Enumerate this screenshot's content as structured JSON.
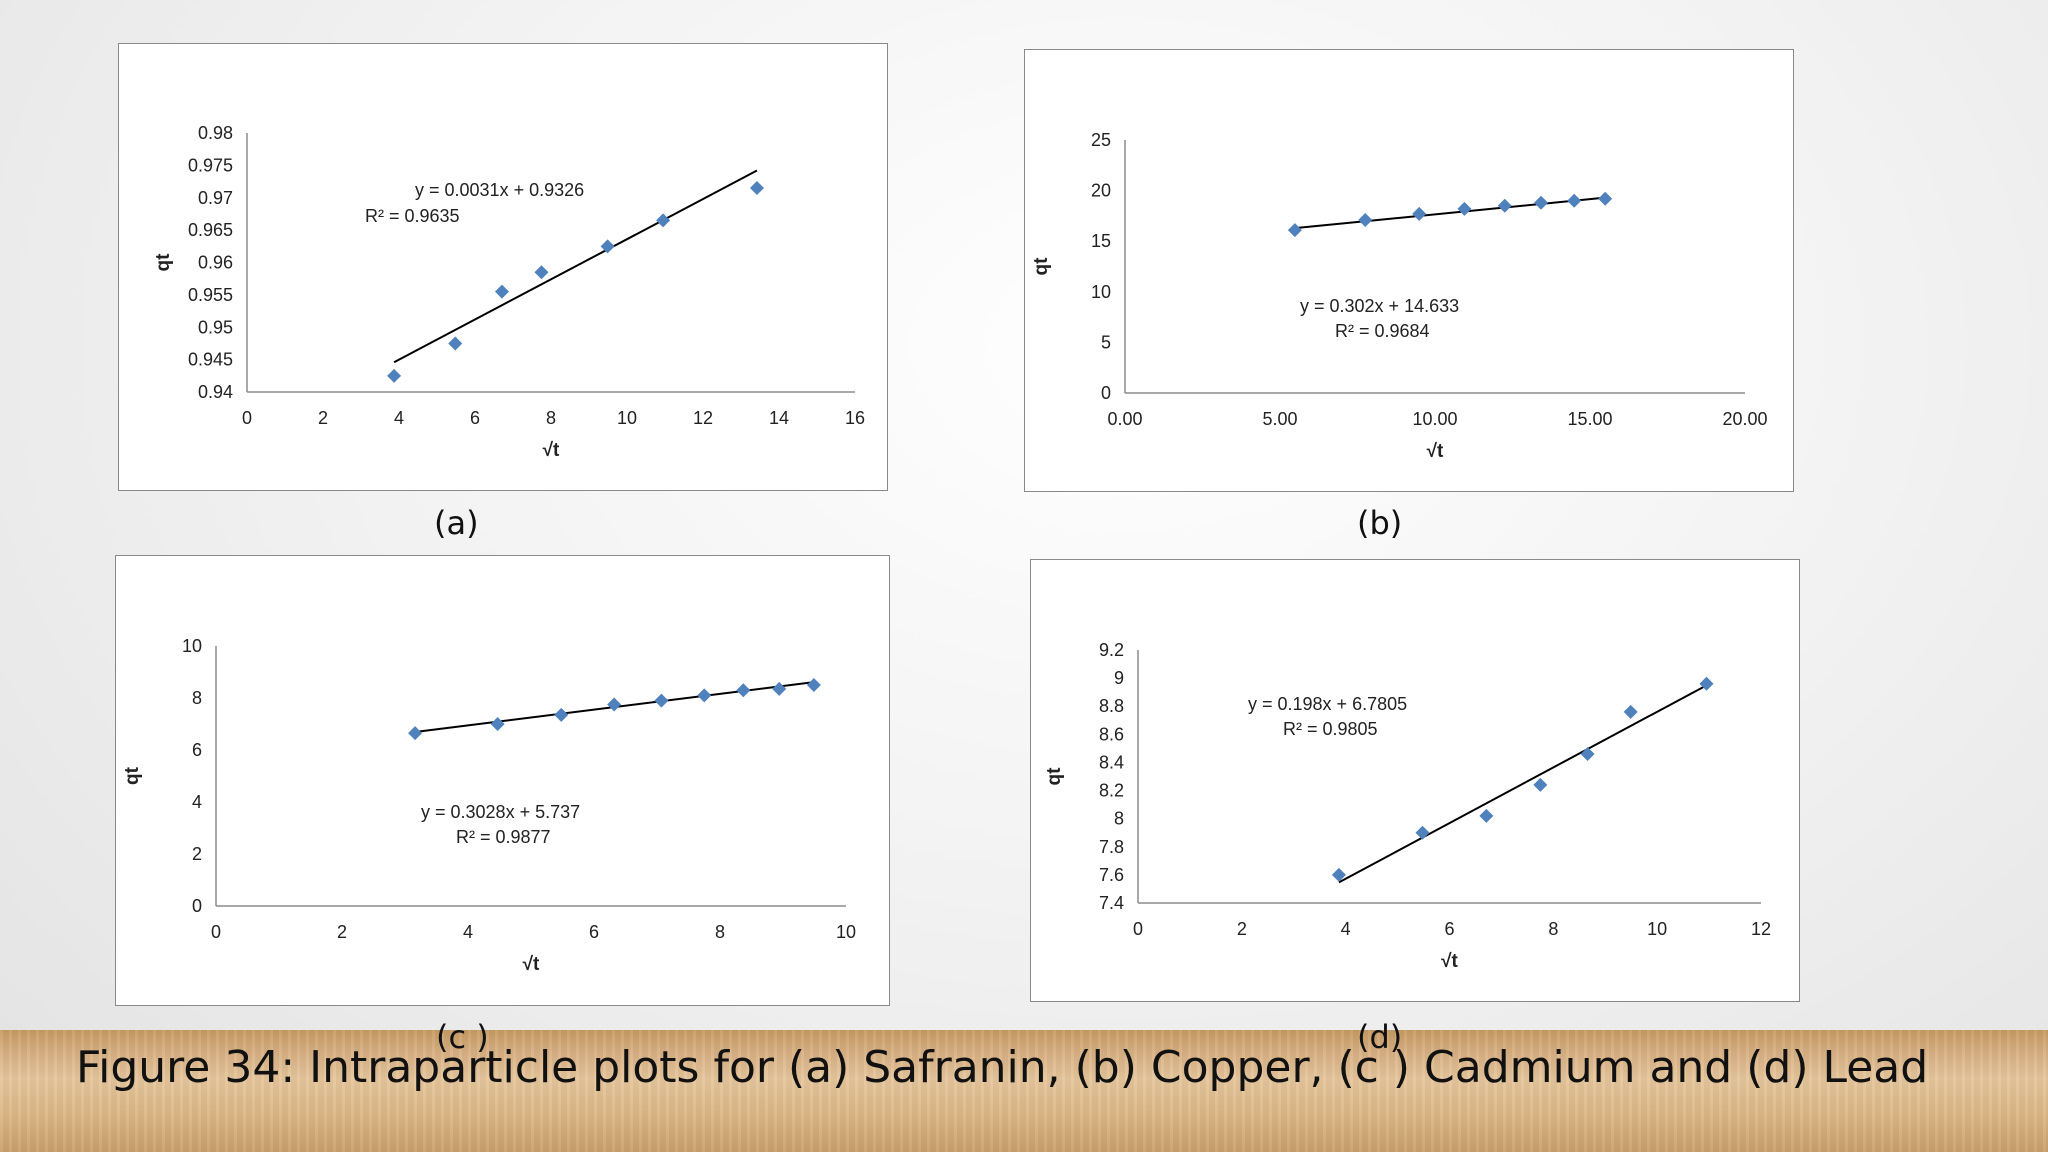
{
  "caption": "Figure 34: Intraparticle plots for (a) Safranin, (b) Copper, (c ) Cadmium and (d) Lead",
  "colors": {
    "marker": "#4f81bd",
    "trendline": "#000000",
    "axis": "#8c8c8c"
  },
  "chart_data": [
    {
      "id": "a",
      "label": "(a)",
      "type": "scatter",
      "xlabel": "√t",
      "ylabel": "qt",
      "xlim": [
        0,
        16
      ],
      "ylim": [
        0.94,
        0.98
      ],
      "xticks": [
        "0",
        "2",
        "4",
        "6",
        "8",
        "10",
        "12",
        "14",
        "16"
      ],
      "yticks": [
        "0.94",
        "0.945",
        "0.95",
        "0.955",
        "0.96",
        "0.965",
        "0.97",
        "0.975",
        "0.98"
      ],
      "points": [
        [
          3.87,
          0.9425
        ],
        [
          5.48,
          0.9475
        ],
        [
          6.71,
          0.9555
        ],
        [
          7.75,
          0.9585
        ],
        [
          9.49,
          0.9625
        ],
        [
          10.95,
          0.9665
        ],
        [
          13.42,
          0.9715
        ]
      ],
      "trendline": {
        "slope": 0.0031,
        "intercept": 0.9326,
        "x_range": [
          3.87,
          13.42
        ]
      },
      "equation": "y = 0.0031x + 0.9326",
      "r2": "R² = 0.9635"
    },
    {
      "id": "b",
      "label": "(b)",
      "type": "scatter",
      "xlabel": "√t",
      "ylabel": "qt",
      "xlim": [
        0,
        20
      ],
      "ylim": [
        0,
        25
      ],
      "xticks": [
        "0.00",
        "5.00",
        "10.00",
        "15.00",
        "20.00"
      ],
      "yticks": [
        "0",
        "5",
        "10",
        "15",
        "20",
        "25"
      ],
      "points": [
        [
          5.48,
          16.1
        ],
        [
          7.75,
          17.1
        ],
        [
          9.49,
          17.7
        ],
        [
          10.95,
          18.2
        ],
        [
          12.25,
          18.5
        ],
        [
          13.42,
          18.8
        ],
        [
          14.49,
          19.0
        ],
        [
          15.49,
          19.2
        ]
      ],
      "trendline": {
        "slope": 0.302,
        "intercept": 14.633,
        "x_range": [
          5.48,
          15.49
        ]
      },
      "equation": "y = 0.302x + 14.633",
      "r2": "R² = 0.9684"
    },
    {
      "id": "c",
      "label": "(c )",
      "type": "scatter",
      "xlabel": "√t",
      "ylabel": "qt",
      "xlim": [
        0,
        10
      ],
      "ylim": [
        0,
        10
      ],
      "xticks": [
        "0",
        "2",
        "4",
        "6",
        "8",
        "10"
      ],
      "yticks": [
        "0",
        "2",
        "4",
        "6",
        "8",
        "10"
      ],
      "points": [
        [
          3.16,
          6.65
        ],
        [
          4.47,
          7.0
        ],
        [
          5.48,
          7.35
        ],
        [
          6.32,
          7.75
        ],
        [
          7.07,
          7.9
        ],
        [
          7.75,
          8.1
        ],
        [
          8.37,
          8.3
        ],
        [
          8.94,
          8.35
        ],
        [
          9.49,
          8.5
        ]
      ],
      "trendline": {
        "slope": 0.3028,
        "intercept": 5.737,
        "x_range": [
          3.16,
          9.49
        ]
      },
      "equation": "y = 0.3028x + 5.737",
      "r2": "R² = 0.9877"
    },
    {
      "id": "d",
      "label": "(d)",
      "type": "scatter",
      "xlabel": "√t",
      "ylabel": "qt",
      "xlim": [
        0,
        12
      ],
      "ylim": [
        7.4,
        9.2
      ],
      "xticks": [
        "0",
        "2",
        "4",
        "6",
        "8",
        "10",
        "12"
      ],
      "yticks": [
        "7.4",
        "7.6",
        "7.8",
        "8",
        "8.2",
        "8.4",
        "8.6",
        "8.8",
        "9",
        "9.2"
      ],
      "points": [
        [
          3.87,
          7.6
        ],
        [
          5.48,
          7.9
        ],
        [
          6.71,
          8.02
        ],
        [
          7.75,
          8.24
        ],
        [
          8.66,
          8.46
        ],
        [
          9.49,
          8.76
        ],
        [
          10.95,
          8.96
        ]
      ],
      "trendline": {
        "slope": 0.198,
        "intercept": 6.7805,
        "x_range": [
          3.87,
          10.95
        ]
      },
      "equation": "y = 0.198x + 6.7805",
      "r2": "R² = 0.9805"
    }
  ]
}
